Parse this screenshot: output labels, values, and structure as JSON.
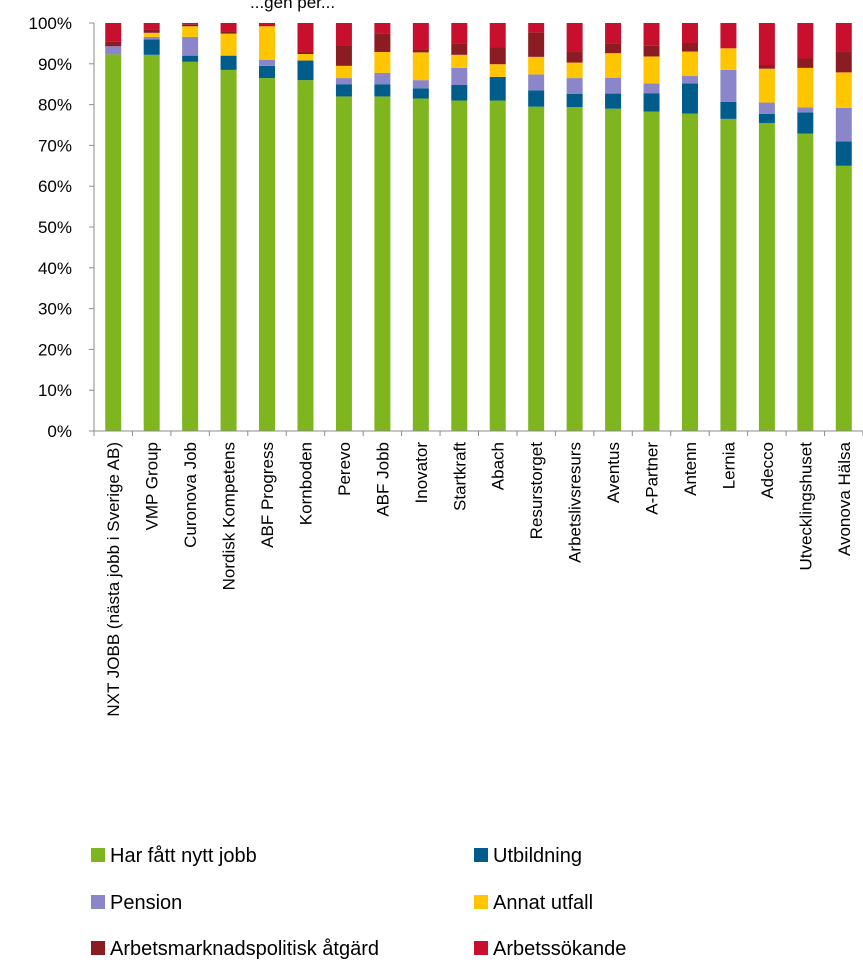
{
  "chart_data": {
    "type": "bar",
    "stacked": true,
    "percent_stacked": true,
    "title": "",
    "title_partial_visible": "...gen per...",
    "ylim": [
      0,
      100
    ],
    "y_ticks": [
      "0%",
      "10%",
      "20%",
      "30%",
      "40%",
      "50%",
      "60%",
      "70%",
      "80%",
      "90%",
      "100%"
    ],
    "categories": [
      "NXT JOBB (nästa jobb i Sverige AB)",
      "VMP Group",
      "Curonova Job",
      "Nordisk Kompetens",
      "ABF Progress",
      "Kornboden",
      "Perevo",
      "ABF Jobb",
      "Inovator",
      "Startkraft",
      "Abach",
      "Resurstorget",
      "Arbetslivsresurs",
      "Aventus",
      "A-Partner",
      "Antenn",
      "Lernia",
      "Adecco",
      "Utvecklingshuset",
      "Avonova Hälsa"
    ],
    "series": [
      {
        "name": "Har fått nytt jobb",
        "color": "#7fb51e",
        "values": [
          92.3,
          92.2,
          90.5,
          88.5,
          86.5,
          86.0,
          82.0,
          82.0,
          81.5,
          81.0,
          81.0,
          79.5,
          79.4,
          79.0,
          78.3,
          77.8,
          76.5,
          75.5,
          72.9,
          65.0
        ]
      },
      {
        "name": "Utbildning",
        "color": "#005c8a",
        "values": [
          0.0,
          3.8,
          1.5,
          3.5,
          3.0,
          4.8,
          3.0,
          3.0,
          2.5,
          3.8,
          5.8,
          4.0,
          3.2,
          3.7,
          4.5,
          7.4,
          4.2,
          2.2,
          5.2,
          6.0
        ]
      },
      {
        "name": "Pension",
        "color": "#8b86c9",
        "values": [
          2.0,
          0.6,
          4.6,
          0.0,
          1.5,
          0.0,
          1.5,
          2.8,
          2.0,
          4.2,
          0.0,
          3.9,
          3.9,
          3.9,
          2.4,
          1.8,
          7.8,
          2.8,
          1.2,
          8.2
        ]
      },
      {
        "name": "Annat utfall",
        "color": "#ffc600",
        "values": [
          0.0,
          1.0,
          2.6,
          5.4,
          8.2,
          1.6,
          3.0,
          5.1,
          6.8,
          3.2,
          3.1,
          4.3,
          3.8,
          6.0,
          6.6,
          6.0,
          5.3,
          8.3,
          9.7,
          8.7
        ]
      },
      {
        "name": "Arbetsmarknadspolitisk åtgärd",
        "color": "#8c1c24",
        "values": [
          1.2,
          0.7,
          0.5,
          0.5,
          0.3,
          0.5,
          5.0,
          4.5,
          0.8,
          2.8,
          4.1,
          6.0,
          2.7,
          2.4,
          2.6,
          2.1,
          0.0,
          0.9,
          2.3,
          5.0
        ]
      },
      {
        "name": "Arbetssökande",
        "color": "#c8102e",
        "values": [
          4.5,
          1.7,
          0.3,
          2.1,
          0.5,
          7.1,
          5.5,
          2.6,
          6.4,
          5.0,
          6.0,
          2.3,
          7.0,
          5.0,
          5.6,
          4.9,
          6.2,
          10.3,
          8.7,
          7.1
        ]
      }
    ],
    "legend_position": "bottom",
    "grid": false
  }
}
